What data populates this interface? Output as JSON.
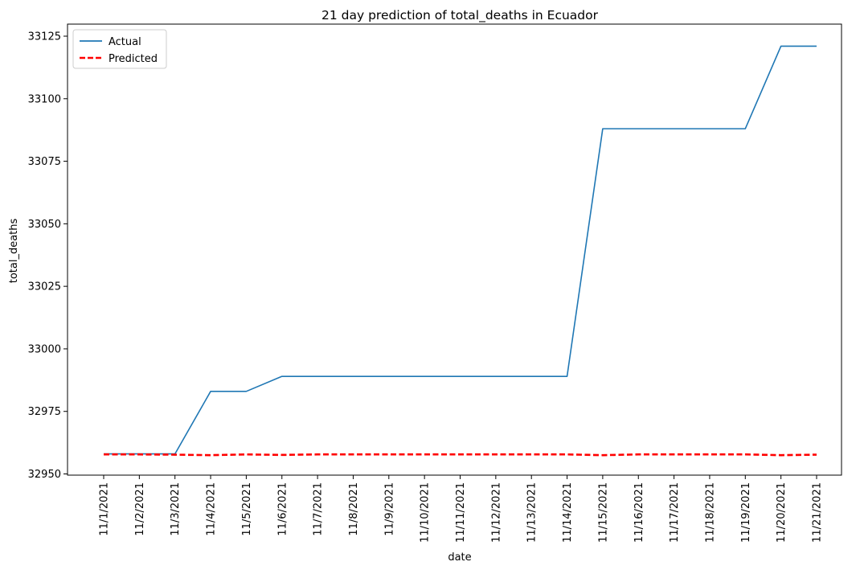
{
  "chart_data": {
    "type": "line",
    "title": "21 day prediction of total_deaths in Ecuador",
    "xlabel": "date",
    "ylabel": "total_deaths",
    "x": [
      "11/1/2021",
      "11/2/2021",
      "11/3/2021",
      "11/4/2021",
      "11/5/2021",
      "11/6/2021",
      "11/7/2021",
      "11/8/2021",
      "11/9/2021",
      "11/10/2021",
      "11/11/2021",
      "11/12/2021",
      "11/13/2021",
      "11/14/2021",
      "11/15/2021",
      "11/16/2021",
      "11/17/2021",
      "11/18/2021",
      "11/19/2021",
      "11/20/2021",
      "11/21/2021"
    ],
    "ylim": [
      32950,
      33128
    ],
    "yticks": [
      32950,
      32975,
      33000,
      33025,
      33050,
      33075,
      33100,
      33125
    ],
    "grid": false,
    "legend_position": "top-left",
    "series": [
      {
        "name": "Actual",
        "color": "#1f77b4",
        "style": "solid",
        "values": [
          32958,
          32958,
          32958,
          32983,
          32983,
          32989,
          32989,
          32989,
          32989,
          32989,
          32989,
          32989,
          32989,
          32989,
          33088,
          33088,
          33088,
          33088,
          33088,
          33121,
          33121
        ]
      },
      {
        "name": "Predicted",
        "color": "#ff0000",
        "style": "dashed",
        "values": [
          32957.8,
          32957.8,
          32957.7,
          32957.5,
          32957.8,
          32957.6,
          32957.8,
          32957.8,
          32957.8,
          32957.8,
          32957.8,
          32957.8,
          32957.8,
          32957.8,
          32957.5,
          32957.8,
          32957.8,
          32957.8,
          32957.8,
          32957.5,
          32957.7
        ]
      }
    ]
  }
}
